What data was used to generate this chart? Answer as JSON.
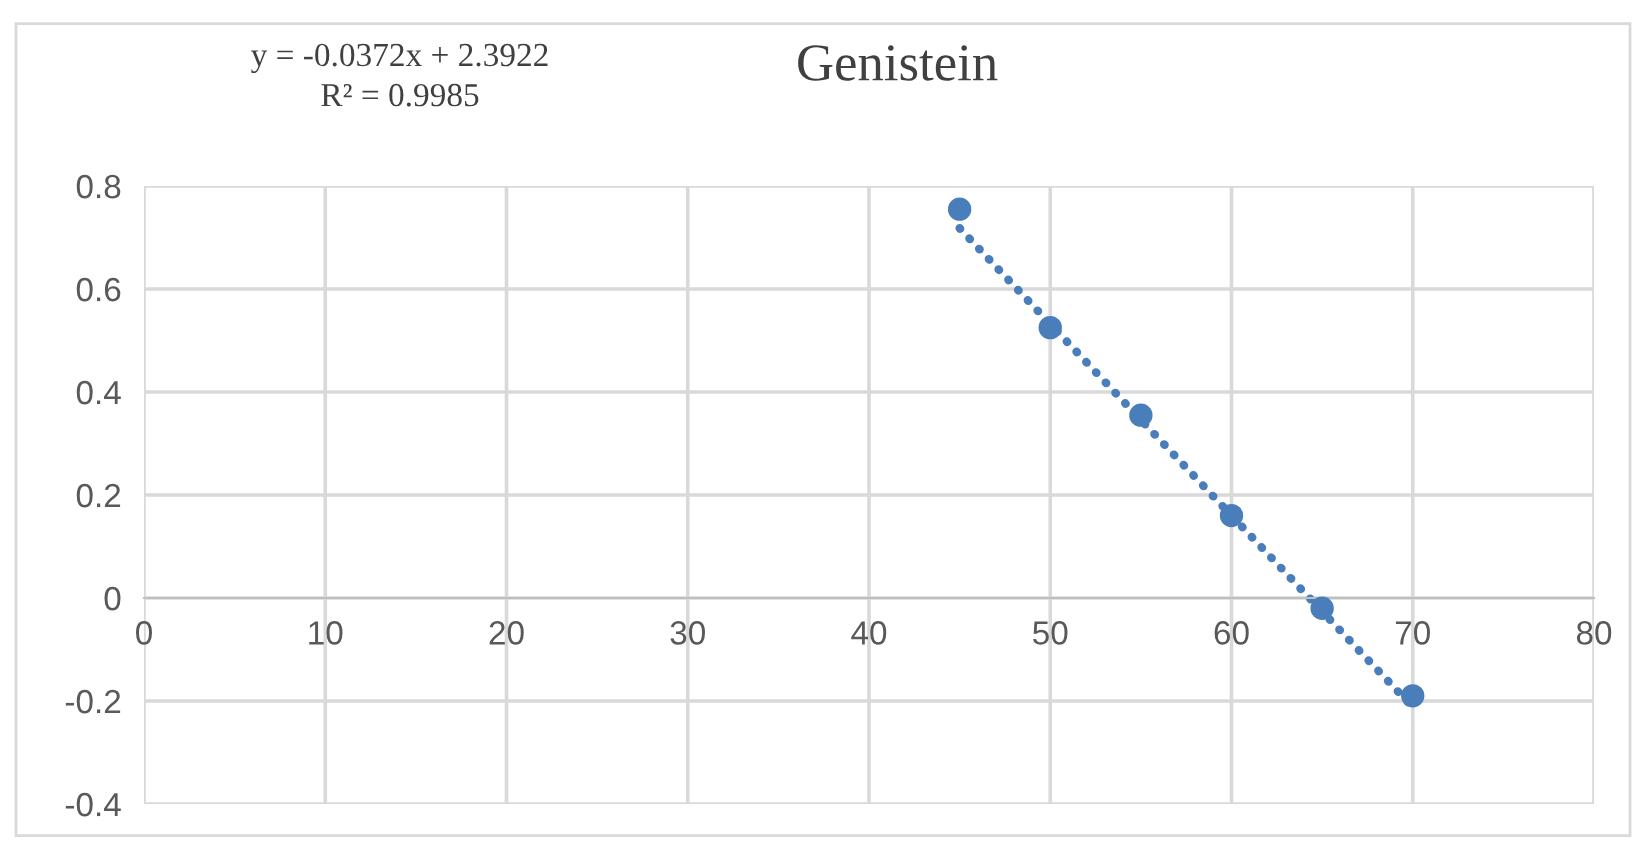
{
  "chart_data": {
    "type": "scatter",
    "title": "Genistein",
    "annotations": [
      "y = -0.0372x + 2.3922",
      "R² = 0.9985"
    ],
    "series": [
      {
        "color": "#4a7ebb",
        "x": [
          45,
          50,
          55,
          60,
          65,
          70
        ],
        "values": [
          0.755,
          0.525,
          0.355,
          0.16,
          -0.02,
          -0.19
        ],
        "marker": "circle"
      },
      {
        "type": "line",
        "color": "#4a7ebb",
        "x": [
          45,
          70
        ],
        "values": [
          0.718,
          -0.212
        ],
        "line_style": "dotted",
        "marker": "none"
      }
    ],
    "xlim": [
      0,
      80
    ],
    "xticks": [
      0,
      10,
      20,
      30,
      40,
      50,
      60,
      70,
      80
    ],
    "ylim": [
      -0.4,
      0.8
    ],
    "yticks": [
      -0.4,
      -0.2,
      0,
      0.2,
      0.4,
      0.6,
      0.8
    ],
    "grid": true,
    "legend": false
  }
}
